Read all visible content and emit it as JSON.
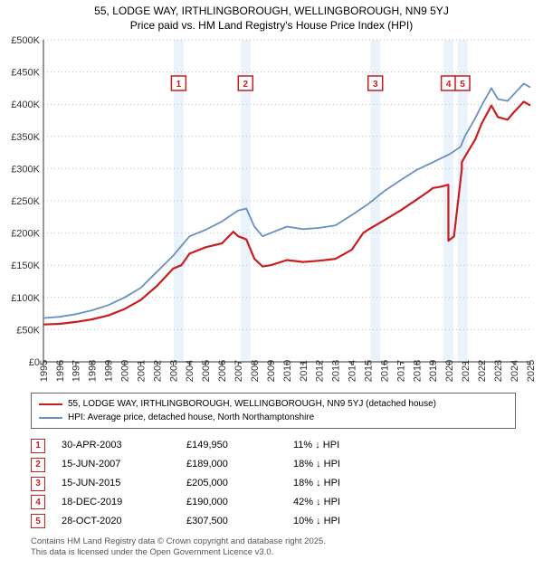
{
  "title_line1": "55, LODGE WAY, IRTHLINGBOROUGH, WELLINGBOROUGH, NN9 5YJ",
  "title_line2": "Price paid vs. HM Land Registry's House Price Index (HPI)",
  "chart": {
    "type": "line",
    "x_years": [
      1995,
      1996,
      1997,
      1998,
      1999,
      2000,
      2001,
      2002,
      2003,
      2004,
      2005,
      2006,
      2007,
      2008,
      2009,
      2010,
      2011,
      2012,
      2013,
      2014,
      2015,
      2016,
      2017,
      2018,
      2019,
      2020,
      2021,
      2022,
      2023,
      2024,
      2025
    ],
    "ylim": [
      0,
      500000
    ],
    "ytick_step": 50000,
    "ytick_labels": [
      "£0",
      "£50K",
      "£100K",
      "£150K",
      "£200K",
      "£250K",
      "£300K",
      "£350K",
      "£400K",
      "£450K",
      "£500K"
    ],
    "grid_color": "#bfbfbf",
    "plot_bg": "#ffffff",
    "series": [
      {
        "name": "subject",
        "color": "#c81e1e",
        "width": 2.2,
        "points": [
          [
            1995,
            58000
          ],
          [
            1996,
            59000
          ],
          [
            1997,
            62000
          ],
          [
            1998,
            66000
          ],
          [
            1999,
            72000
          ],
          [
            2000,
            82000
          ],
          [
            2001,
            96000
          ],
          [
            2002,
            118000
          ],
          [
            2003,
            145000
          ],
          [
            2003.5,
            150000
          ],
          [
            2004,
            168000
          ],
          [
            2005,
            178000
          ],
          [
            2006,
            184000
          ],
          [
            2006.7,
            202000
          ],
          [
            2007,
            195000
          ],
          [
            2007.5,
            190000
          ],
          [
            2008,
            160000
          ],
          [
            2008.5,
            148000
          ],
          [
            2009,
            150000
          ],
          [
            2010,
            158000
          ],
          [
            2011,
            155000
          ],
          [
            2012,
            157000
          ],
          [
            2013,
            160000
          ],
          [
            2014,
            174000
          ],
          [
            2014.7,
            200000
          ],
          [
            2015,
            205000
          ],
          [
            2016,
            220000
          ],
          [
            2017,
            235000
          ],
          [
            2018,
            252000
          ],
          [
            2018.7,
            264000
          ],
          [
            2019,
            270000
          ],
          [
            2019.5,
            272000
          ],
          [
            2019.95,
            275000
          ],
          [
            2019.951,
            188000
          ],
          [
            2020.3,
            195000
          ],
          [
            2020.78,
            300000
          ],
          [
            2020.781,
            310000
          ],
          [
            2021,
            320000
          ],
          [
            2021.6,
            345000
          ],
          [
            2022,
            370000
          ],
          [
            2022.6,
            398000
          ],
          [
            2023,
            380000
          ],
          [
            2023.6,
            376000
          ],
          [
            2024,
            388000
          ],
          [
            2024.6,
            404000
          ],
          [
            2025,
            398000
          ]
        ]
      },
      {
        "name": "hpi",
        "color": "#6a8fc6",
        "width": 1.8,
        "points": [
          [
            1995,
            68000
          ],
          [
            1996,
            70000
          ],
          [
            1997,
            74000
          ],
          [
            1998,
            80000
          ],
          [
            1999,
            88000
          ],
          [
            2000,
            100000
          ],
          [
            2001,
            115000
          ],
          [
            2002,
            140000
          ],
          [
            2003,
            165000
          ],
          [
            2004,
            195000
          ],
          [
            2005,
            205000
          ],
          [
            2006,
            218000
          ],
          [
            2006.7,
            230000
          ],
          [
            2007,
            235000
          ],
          [
            2007.5,
            238000
          ],
          [
            2008,
            210000
          ],
          [
            2008.5,
            195000
          ],
          [
            2009,
            200000
          ],
          [
            2010,
            210000
          ],
          [
            2011,
            206000
          ],
          [
            2012,
            208000
          ],
          [
            2013,
            212000
          ],
          [
            2014,
            228000
          ],
          [
            2015,
            245000
          ],
          [
            2016,
            265000
          ],
          [
            2017,
            282000
          ],
          [
            2018,
            298000
          ],
          [
            2019,
            310000
          ],
          [
            2020,
            322000
          ],
          [
            2020.7,
            334000
          ],
          [
            2021,
            352000
          ],
          [
            2021.6,
            378000
          ],
          [
            2022,
            398000
          ],
          [
            2022.6,
            425000
          ],
          [
            2023,
            408000
          ],
          [
            2023.6,
            405000
          ],
          [
            2024,
            416000
          ],
          [
            2024.6,
            432000
          ],
          [
            2025,
            426000
          ]
        ]
      }
    ],
    "markers": [
      {
        "n": "1",
        "x": 2003.33
      },
      {
        "n": "2",
        "x": 2007.45
      },
      {
        "n": "3",
        "x": 2015.45
      },
      {
        "n": "4",
        "x": 2019.96
      },
      {
        "n": "5",
        "x": 2020.82
      }
    ]
  },
  "legend": {
    "subject_label": "55, LODGE WAY, IRTHLINGBOROUGH, WELLINGBOROUGH, NN9 5YJ (detached house)",
    "hpi_label": "HPI: Average price, detached house, North Northamptonshire",
    "subject_color": "#c81e1e",
    "hpi_color": "#6a8fc6"
  },
  "sales": [
    {
      "n": "1",
      "date": "30-APR-2003",
      "price": "£149,950",
      "delta": "11% ↓ HPI"
    },
    {
      "n": "2",
      "date": "15-JUN-2007",
      "price": "£189,000",
      "delta": "18% ↓ HPI"
    },
    {
      "n": "3",
      "date": "15-JUN-2015",
      "price": "£205,000",
      "delta": "18% ↓ HPI"
    },
    {
      "n": "4",
      "date": "18-DEC-2019",
      "price": "£190,000",
      "delta": "42% ↓ HPI"
    },
    {
      "n": "5",
      "date": "28-OCT-2020",
      "price": "£307,500",
      "delta": "10% ↓ HPI"
    }
  ],
  "footnote_line1": "Contains HM Land Registry data © Crown copyright and database right 2025.",
  "footnote_line2": "This data is licensed under the Open Government Licence v3.0."
}
